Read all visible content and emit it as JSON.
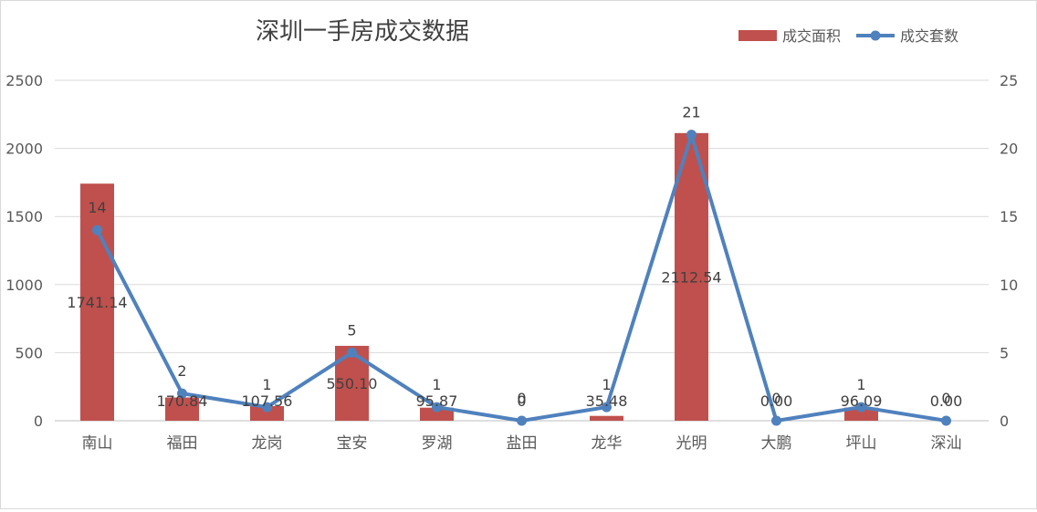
{
  "chart_data": {
    "type": "bar",
    "title": "深圳一手房成交数据",
    "categories": [
      "南山",
      "福田",
      "龙岗",
      "宝安",
      "罗湖",
      "盐田",
      "龙华",
      "光明",
      "大鹏",
      "坪山",
      "深汕"
    ],
    "series": [
      {
        "name": "成交面积",
        "type": "bar",
        "axis": "left",
        "color": "#c0504d",
        "values": [
          1741.14,
          170.84,
          107.56,
          550.1,
          95.87,
          0,
          35.48,
          2112.54,
          0,
          96.09,
          0
        ],
        "labels": [
          "1741.14",
          "170.84",
          "107.56",
          "550.10",
          "95.87",
          "0",
          "35.48",
          "2112.54",
          "0.00",
          "96.09",
          "0.00"
        ]
      },
      {
        "name": "成交套数",
        "type": "line",
        "axis": "right",
        "color": "#4f81bd",
        "values": [
          14,
          2,
          1,
          5,
          1,
          0,
          1,
          21,
          0,
          1,
          0
        ],
        "labels": [
          "14",
          "2",
          "1",
          "5",
          "1",
          "0",
          "1",
          "21",
          "0",
          "1",
          "0"
        ]
      }
    ],
    "y_left": {
      "min": 0,
      "max": 2500,
      "ticks": [
        "0",
        "500",
        "1000",
        "1500",
        "2000",
        "2500"
      ]
    },
    "y_right": {
      "min": 0,
      "max": 25,
      "ticks": [
        "0",
        "5",
        "10",
        "15",
        "20",
        "25"
      ]
    },
    "grid": true,
    "legend_position": "top-right"
  }
}
